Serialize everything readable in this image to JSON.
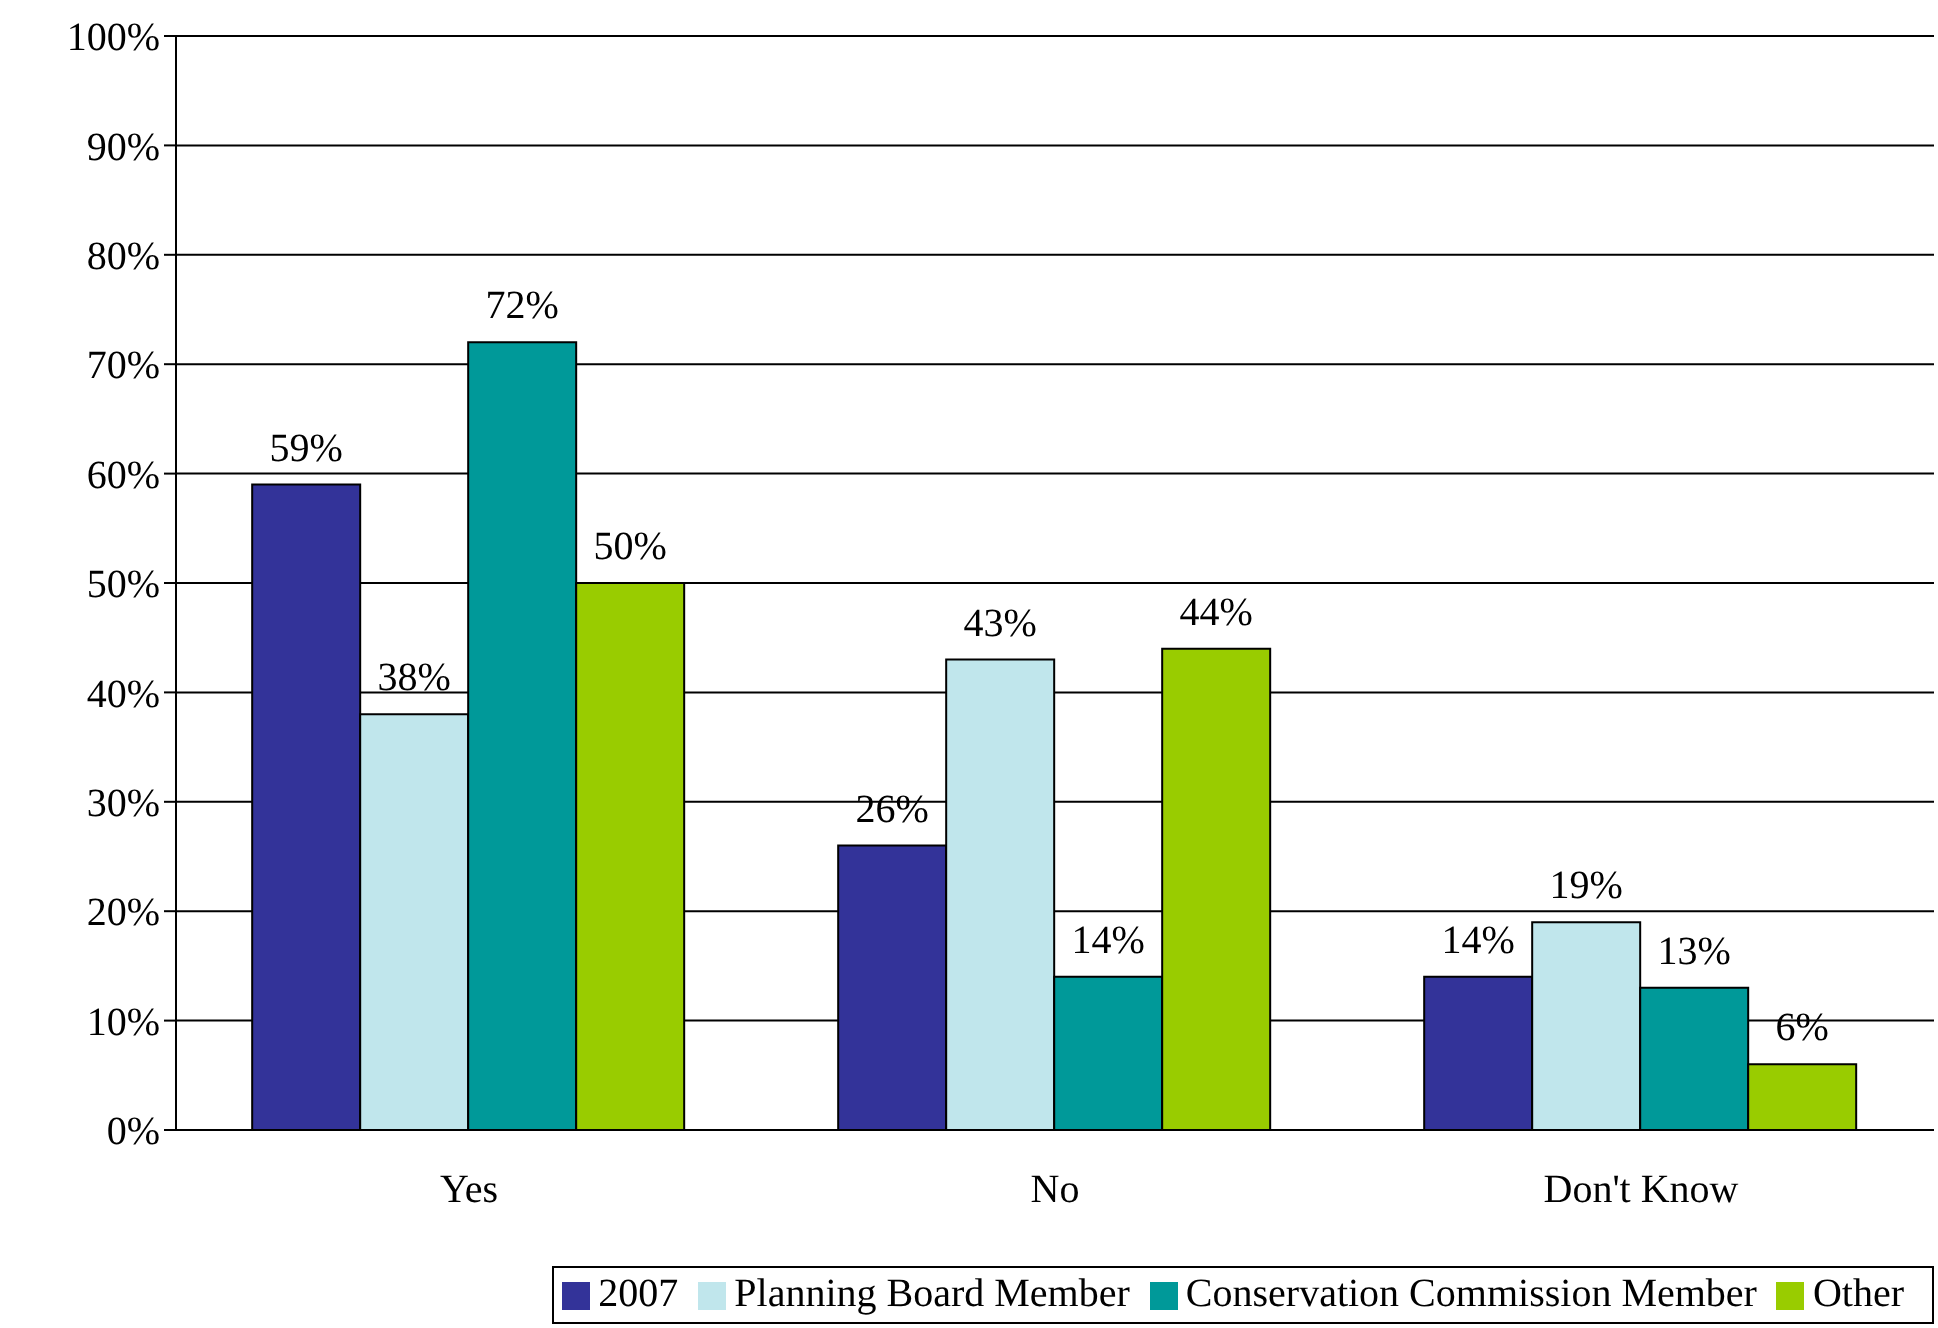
{
  "chart_data": {
    "type": "bar",
    "categories": [
      "Yes",
      "No",
      "Don't Know"
    ],
    "series": [
      {
        "name": "2007",
        "color": "#333399",
        "values": [
          59,
          26,
          14
        ],
        "value_labels": [
          "59%",
          "26%",
          "14%"
        ]
      },
      {
        "name": "Planning Board Member",
        "color": "#c0e6ec",
        "values": [
          38,
          43,
          19
        ],
        "value_labels": [
          "38%",
          "43%",
          "19%"
        ]
      },
      {
        "name": "Conservation Commission Member",
        "color": "#009999",
        "values": [
          72,
          14,
          13
        ],
        "value_labels": [
          "72%",
          "14%",
          "13%"
        ]
      },
      {
        "name": "Other",
        "color": "#99cc00",
        "values": [
          50,
          44,
          6
        ],
        "value_labels": [
          "50%",
          "44%",
          "6%"
        ]
      }
    ],
    "ylim": [
      0,
      100
    ],
    "yticks": [
      {
        "value": 0,
        "label": "0%"
      },
      {
        "value": 10,
        "label": "10%"
      },
      {
        "value": 20,
        "label": "20%"
      },
      {
        "value": 30,
        "label": "30%"
      },
      {
        "value": 40,
        "label": "40%"
      },
      {
        "value": 50,
        "label": "50%"
      },
      {
        "value": 60,
        "label": "60%"
      },
      {
        "value": 70,
        "label": "70%"
      },
      {
        "value": 80,
        "label": "80%"
      },
      {
        "value": 90,
        "label": "90%"
      },
      {
        "value": 100,
        "label": "100%"
      }
    ],
    "grid": "y",
    "legend": "bottom"
  }
}
